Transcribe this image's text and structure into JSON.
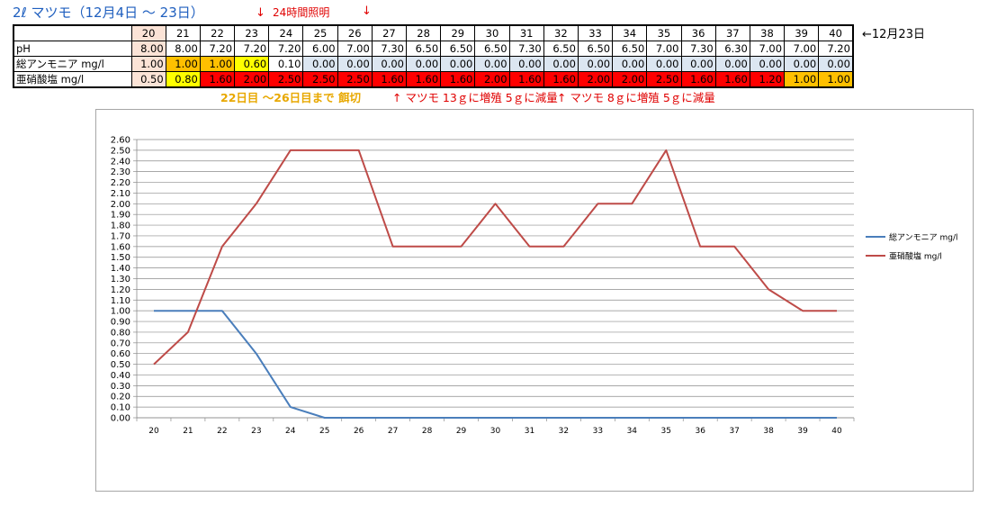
{
  "header": {
    "title": "2ℓ マツモ（12月4日 〜 23日）",
    "arrow1": "↓",
    "arrow1_text": "24時間照明",
    "arrow2": "↓",
    "side_note": "←12月23日"
  },
  "table": {
    "days": [
      "20",
      "21",
      "22",
      "23",
      "24",
      "25",
      "26",
      "27",
      "28",
      "29",
      "30",
      "31",
      "32",
      "33",
      "34",
      "35",
      "36",
      "37",
      "38",
      "39",
      "40"
    ],
    "rows": [
      {
        "label": "pH",
        "values": [
          "8.00",
          "8.00",
          "7.20",
          "7.20",
          "7.20",
          "6.00",
          "7.00",
          "7.30",
          "6.50",
          "6.50",
          "6.50",
          "7.30",
          "6.50",
          "6.50",
          "6.50",
          "7.00",
          "7.30",
          "6.30",
          "7.00",
          "7.00",
          "7.20"
        ]
      },
      {
        "label": "総アンモニア mg/l",
        "values": [
          "1.00",
          "1.00",
          "1.00",
          "0.60",
          "0.10",
          "0.00",
          "0.00",
          "0.00",
          "0.00",
          "0.00",
          "0.00",
          "0.00",
          "0.00",
          "0.00",
          "0.00",
          "0.00",
          "0.00",
          "0.00",
          "0.00",
          "0.00",
          "0.00"
        ]
      },
      {
        "label": "亜硝酸塩 mg/l",
        "values": [
          "0.50",
          "0.80",
          "1.60",
          "2.00",
          "2.50",
          "2.50",
          "2.50",
          "1.60",
          "1.60",
          "1.60",
          "2.00",
          "1.60",
          "1.60",
          "2.00",
          "2.00",
          "2.50",
          "1.60",
          "1.60",
          "1.20",
          "1.00",
          "1.00"
        ]
      }
    ],
    "colors": {
      "peach": "#fbe3d6",
      "orange": "#ffc000",
      "yellow": "#ffff00",
      "red": "#ff0000",
      "lightblue": "#dce6f1"
    }
  },
  "notes": {
    "feeding": "22日目 〜26日目まで 餌切",
    "increase1": "↑ マツモ 13ｇに増殖 5ｇに減量",
    "increase2": "↑ マツモ 8ｇに増殖 5ｇに減量"
  },
  "chart_data": {
    "type": "line",
    "title": "",
    "xlabel": "",
    "ylabel": "",
    "x": [
      20,
      21,
      22,
      23,
      24,
      25,
      26,
      27,
      28,
      29,
      30,
      31,
      32,
      33,
      34,
      35,
      36,
      37,
      38,
      39,
      40
    ],
    "ylim": [
      0,
      2.6
    ],
    "ytick_step": 0.1,
    "grid": true,
    "legend": "right",
    "series": [
      {
        "name": "総アンモニア mg/l",
        "color": "#4a7ebb",
        "values": [
          1.0,
          1.0,
          1.0,
          0.6,
          0.1,
          0.0,
          0.0,
          0.0,
          0.0,
          0.0,
          0.0,
          0.0,
          0.0,
          0.0,
          0.0,
          0.0,
          0.0,
          0.0,
          0.0,
          0.0,
          0.0
        ]
      },
      {
        "name": "亜硝酸塩 mg/l",
        "color": "#be4b48",
        "values": [
          0.5,
          0.8,
          1.6,
          2.0,
          2.5,
          2.5,
          2.5,
          1.6,
          1.6,
          1.6,
          2.0,
          1.6,
          1.6,
          2.0,
          2.0,
          2.5,
          1.6,
          1.6,
          1.2,
          1.0,
          1.0
        ]
      }
    ]
  }
}
